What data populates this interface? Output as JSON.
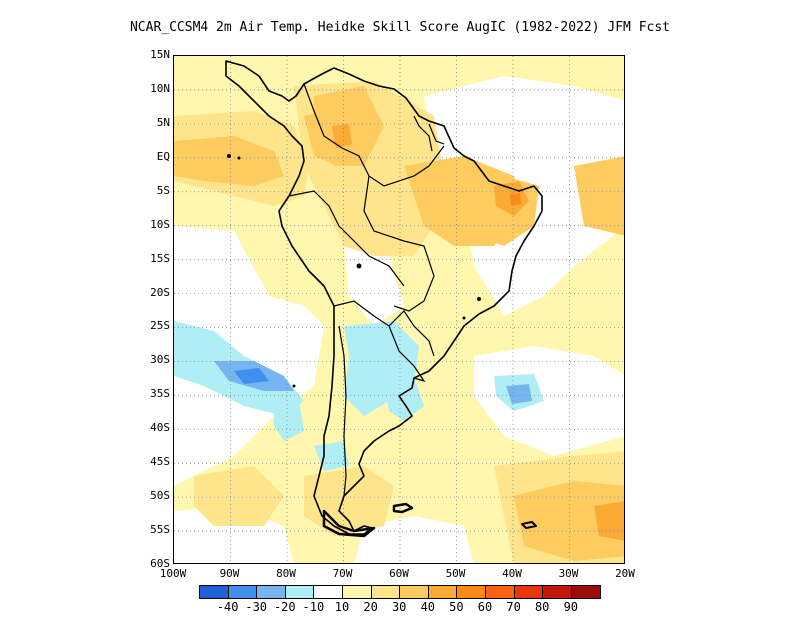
{
  "title": "NCAR_CCSM4  2m Air Temp. Heidke Skill Score AugIC (1982-2022) JFM Fcst",
  "map": {
    "lat_labels": [
      "15N",
      "10N",
      "5N",
      "EQ",
      "5S",
      "10S",
      "15S",
      "20S",
      "25S",
      "30S",
      "35S",
      "40S",
      "45S",
      "50S",
      "55S",
      "60S"
    ],
    "lon_labels": [
      "100W",
      "90W",
      "80W",
      "70W",
      "60W",
      "50W",
      "40W",
      "30W",
      "20W"
    ],
    "lat_range": [
      -60,
      15
    ],
    "lon_range": [
      -100,
      -20
    ],
    "grid": "dotted"
  },
  "colorbar": {
    "colors": [
      "#1f62d8",
      "#3e8ff0",
      "#76b4f2",
      "#b0eef6",
      "#ffffff",
      "#fff7ad",
      "#fee58c",
      "#fdcb5e",
      "#fcaa34",
      "#fa8c14",
      "#f86414",
      "#e8380c",
      "#c4160a",
      "#9b0b0a"
    ],
    "labels": [
      "-40",
      "-30",
      "-20",
      "-10",
      "10",
      "20",
      "30",
      "40",
      "50",
      "60",
      "70",
      "80",
      "90"
    ]
  },
  "regions": [
    {
      "name": "north-atlantic-orange",
      "value": "20"
    },
    {
      "name": "brazil-orange",
      "value": "30"
    },
    {
      "name": "argentina-blue",
      "value": "-10"
    },
    {
      "name": "south-pacific-blue",
      "value": "-20"
    }
  ]
}
